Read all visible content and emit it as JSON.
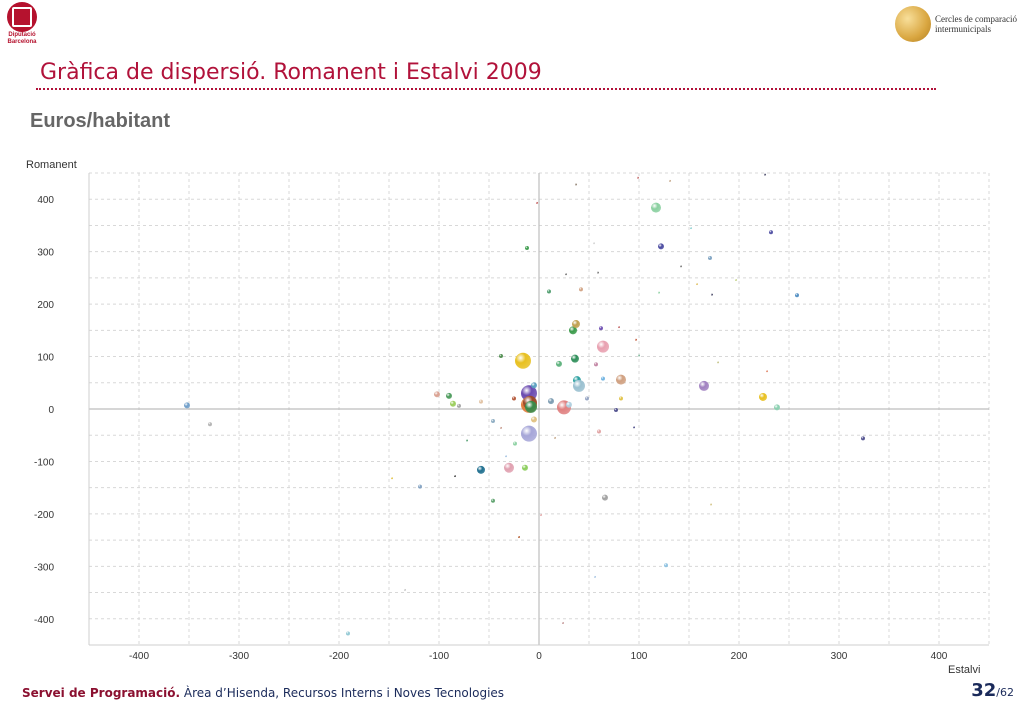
{
  "header": {
    "left_logo_lines": [
      "Diputació",
      "Barcelona"
    ],
    "right_logo_lines": [
      "Cercles de comparació",
      "intermunicipals"
    ],
    "title": "Gràfica de dispersió. Romanent i Estalvi 2009",
    "subtitle": "Euros/habitant"
  },
  "footer": {
    "org": "Servei de Programació.",
    "dept": " Àrea d’Hisenda, Recursos Interns i Noves Tecnologies",
    "page": "32",
    "total": "/62"
  },
  "chart_data": {
    "type": "scatter",
    "xlabel": "Estalvi",
    "ylabel": "Romanent",
    "xlim": [
      -450,
      450
    ],
    "ylim": [
      -450,
      450
    ],
    "x_ticks": [
      -400,
      -300,
      -200,
      -100,
      0,
      100,
      200,
      300,
      400
    ],
    "y_ticks": [
      400,
      300,
      200,
      100,
      0,
      -100,
      -200,
      -300,
      -400
    ],
    "grid": true,
    "points": [
      {
        "x": -352,
        "y": 7,
        "s": 3,
        "c": "#6f9ec9"
      },
      {
        "x": -329,
        "y": -29,
        "s": 2,
        "c": "#b0b0b0"
      },
      {
        "x": -191,
        "y": -428,
        "s": 2,
        "c": "#8fc7d3"
      },
      {
        "x": -147,
        "y": -132,
        "s": 1,
        "c": "#e0c040"
      },
      {
        "x": -119,
        "y": -148,
        "s": 2,
        "c": "#7f9fc0"
      },
      {
        "x": -102,
        "y": 28,
        "s": 3,
        "c": "#d9a090"
      },
      {
        "x": -90,
        "y": 25,
        "s": 3,
        "c": "#4a9a5a"
      },
      {
        "x": -86,
        "y": 10,
        "s": 3,
        "c": "#9acd5a"
      },
      {
        "x": -80,
        "y": 6,
        "s": 2,
        "c": "#a0a0a0"
      },
      {
        "x": -58,
        "y": -116,
        "s": 4,
        "c": "#1f6f8f"
      },
      {
        "x": -46,
        "y": -175,
        "s": 2,
        "c": "#5aa06a"
      },
      {
        "x": -46,
        "y": -23,
        "s": 2,
        "c": "#8aaac0"
      },
      {
        "x": -38,
        "y": 101,
        "s": 2,
        "c": "#4a8a4a"
      },
      {
        "x": -30,
        "y": -112,
        "s": 5,
        "c": "#e0a0b0"
      },
      {
        "x": -25,
        "y": 20,
        "s": 2,
        "c": "#b05030"
      },
      {
        "x": -24,
        "y": -66,
        "s": 2,
        "c": "#8ad0a0"
      },
      {
        "x": -20,
        "y": -244,
        "s": 1,
        "c": "#b05020"
      },
      {
        "x": -16,
        "y": 92,
        "s": 8,
        "c": "#e8c020"
      },
      {
        "x": -14,
        "y": -112,
        "s": 3,
        "c": "#8acd5a"
      },
      {
        "x": -12,
        "y": 307,
        "s": 2,
        "c": "#3a9a4a"
      },
      {
        "x": -10,
        "y": 30,
        "s": 8,
        "c": "#6a4ab0"
      },
      {
        "x": -10,
        "y": -47,
        "s": 8,
        "c": "#a6a6d8"
      },
      {
        "x": -10,
        "y": 8,
        "s": 8,
        "c": "#e07a3a"
      },
      {
        "x": -9,
        "y": 12,
        "s": 7,
        "c": "#9a4a2a"
      },
      {
        "x": -8,
        "y": 4,
        "s": 6,
        "c": "#3a8a4a"
      },
      {
        "x": -5,
        "y": 45,
        "s": 3,
        "c": "#5aa0c0"
      },
      {
        "x": -5,
        "y": -20,
        "s": 3,
        "c": "#e0c080"
      },
      {
        "x": 10,
        "y": 224,
        "s": 2,
        "c": "#4a9a6a"
      },
      {
        "x": 12,
        "y": 15,
        "s": 3,
        "c": "#7a9ab0"
      },
      {
        "x": 20,
        "y": 86,
        "s": 3,
        "c": "#5ab07a"
      },
      {
        "x": 25,
        "y": 3,
        "s": 7,
        "c": "#e08080"
      },
      {
        "x": 27,
        "y": 257,
        "s": 1,
        "c": "#707070"
      },
      {
        "x": 34,
        "y": 150,
        "s": 4,
        "c": "#3a9a4a"
      },
      {
        "x": 36,
        "y": 96,
        "s": 4,
        "c": "#2f8f5a"
      },
      {
        "x": 37,
        "y": 162,
        "s": 4,
        "c": "#c0a050"
      },
      {
        "x": 38,
        "y": 55,
        "s": 4,
        "c": "#2aa0a0"
      },
      {
        "x": 40,
        "y": 44,
        "s": 6,
        "c": "#9ac0d0"
      },
      {
        "x": 42,
        "y": 228,
        "s": 2,
        "c": "#d0a080"
      },
      {
        "x": 48,
        "y": 20,
        "s": 2,
        "c": "#90a0c0"
      },
      {
        "x": 60,
        "y": -43,
        "s": 2,
        "c": "#e0a0a0"
      },
      {
        "x": 62,
        "y": 154,
        "s": 2,
        "c": "#6a4ab0"
      },
      {
        "x": 64,
        "y": 119,
        "s": 6,
        "c": "#e8a0b0"
      },
      {
        "x": 64,
        "y": 58,
        "s": 2,
        "c": "#6ab0e0"
      },
      {
        "x": 66,
        "y": -169,
        "s": 3,
        "c": "#a0a0a0"
      },
      {
        "x": 82,
        "y": 56,
        "s": 5,
        "c": "#d0a080"
      },
      {
        "x": 97,
        "y": 132,
        "s": 1,
        "c": "#c05030"
      },
      {
        "x": 117,
        "y": 384,
        "s": 5,
        "c": "#8ad0a0"
      },
      {
        "x": 122,
        "y": 310,
        "s": 3,
        "c": "#4a4aa0"
      },
      {
        "x": 152,
        "y": 345,
        "s": 1,
        "c": "#8ad0d0"
      },
      {
        "x": 165,
        "y": 44,
        "s": 5,
        "c": "#a080c0"
      },
      {
        "x": 171,
        "y": 288,
        "s": 2,
        "c": "#7aa0c0"
      },
      {
        "x": 224,
        "y": 23,
        "s": 4,
        "c": "#e8c020"
      },
      {
        "x": 232,
        "y": 337,
        "s": 2,
        "c": "#4a4aa0"
      },
      {
        "x": 238,
        "y": 3,
        "s": 3,
        "c": "#8ad0b0"
      },
      {
        "x": 258,
        "y": 217,
        "s": 2,
        "c": "#4a8ac0"
      },
      {
        "x": 324,
        "y": -56,
        "s": 2,
        "c": "#4a4a8a"
      },
      {
        "x": 127,
        "y": -298,
        "s": 2,
        "c": "#8ac0e0"
      },
      {
        "x": 2,
        "y": -202,
        "s": 1,
        "c": "#e0a0a0"
      },
      {
        "x": 24,
        "y": -408,
        "s": 1,
        "c": "#c09090"
      },
      {
        "x": 228,
        "y": 72,
        "s": 1,
        "c": "#e08060"
      },
      {
        "x": 179,
        "y": 89,
        "s": 1,
        "c": "#c0c080"
      },
      {
        "x": 158,
        "y": 238,
        "s": 1,
        "c": "#e0c060"
      },
      {
        "x": 197,
        "y": 246,
        "s": 1,
        "c": "#c0d080"
      },
      {
        "x": 120,
        "y": 222,
        "s": 1,
        "c": "#8ad0a0"
      },
      {
        "x": 37,
        "y": 428,
        "s": 1,
        "c": "#8a7a6a"
      },
      {
        "x": 99,
        "y": 441,
        "s": 1,
        "c": "#c06060"
      },
      {
        "x": 131,
        "y": 435,
        "s": 1,
        "c": "#c0a080"
      },
      {
        "x": -2,
        "y": 393,
        "s": 1,
        "c": "#c05050"
      },
      {
        "x": -58,
        "y": 14,
        "s": 2,
        "c": "#e0c0a0"
      },
      {
        "x": -72,
        "y": -60,
        "s": 1,
        "c": "#4a9a6a"
      },
      {
        "x": -84,
        "y": -128,
        "s": 1,
        "c": "#404040"
      },
      {
        "x": -134,
        "y": -345,
        "s": 1,
        "c": "#c0c0c0"
      },
      {
        "x": 56,
        "y": -320,
        "s": 1,
        "c": "#a0c0e0"
      },
      {
        "x": 172,
        "y": -182,
        "s": 1,
        "c": "#d0c080"
      },
      {
        "x": 55,
        "y": 316,
        "s": 1,
        "c": "#d0d0d0"
      },
      {
        "x": 59,
        "y": 260,
        "s": 1,
        "c": "#707070"
      },
      {
        "x": 226,
        "y": 447,
        "s": 1,
        "c": "#404060"
      },
      {
        "x": 142,
        "y": 272,
        "s": 1,
        "c": "#707070"
      },
      {
        "x": 173,
        "y": 218,
        "s": 1,
        "c": "#404060"
      },
      {
        "x": 80,
        "y": 156,
        "s": 1,
        "c": "#c06060"
      },
      {
        "x": 100,
        "y": 102,
        "s": 1,
        "c": "#70b090"
      },
      {
        "x": 95,
        "y": -35,
        "s": 1,
        "c": "#404080"
      },
      {
        "x": 77,
        "y": -2,
        "s": 2,
        "c": "#4a4a8a"
      },
      {
        "x": 82,
        "y": 20,
        "s": 2,
        "c": "#e0c040"
      },
      {
        "x": 57,
        "y": 85,
        "s": 2,
        "c": "#c080a0"
      },
      {
        "x": 30,
        "y": 8,
        "s": 3,
        "c": "#b0d0e0"
      },
      {
        "x": -38,
        "y": -36,
        "s": 1,
        "c": "#c09080"
      },
      {
        "x": -33,
        "y": -90,
        "s": 1,
        "c": "#a0c0e0"
      },
      {
        "x": 16,
        "y": -55,
        "s": 1,
        "c": "#c0a080"
      }
    ]
  }
}
